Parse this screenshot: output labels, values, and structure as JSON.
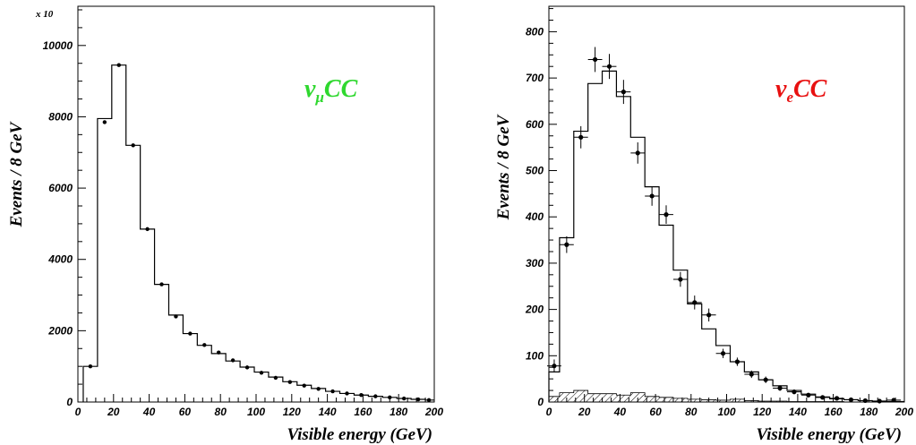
{
  "colors": {
    "left_annotation": "#2fd82f",
    "right_annotation": "#e81010",
    "ink": "#000000"
  },
  "chart_data": [
    {
      "type": "histogram",
      "xlabel": "Visible energy (GeV)",
      "ylabel": "Events / 8 GeV",
      "multiplier_label": "x 10",
      "annotation": {
        "base": "ν",
        "sub": "μ",
        "main": "CC"
      },
      "xlim": [
        0,
        200
      ],
      "ylim": [
        0,
        11100
      ],
      "xticks": [
        0,
        20,
        40,
        60,
        80,
        100,
        120,
        140,
        160,
        180,
        200
      ],
      "yticks": [
        0,
        2000,
        4000,
        6000,
        8000,
        10000
      ],
      "bin_edges": [
        3,
        11,
        19,
        27,
        35,
        43,
        51,
        59,
        67,
        75,
        83,
        91,
        99,
        107,
        115,
        123,
        131,
        139,
        147,
        155,
        163,
        171,
        179,
        187,
        195,
        200
      ],
      "simulation": [
        1000,
        7950,
        9450,
        7200,
        4850,
        3300,
        2440,
        1920,
        1590,
        1360,
        1150,
        980,
        840,
        700,
        570,
        470,
        380,
        300,
        240,
        195,
        160,
        130,
        100,
        75,
        55
      ],
      "data_points": [
        {
          "x": 7,
          "y": 1000
        },
        {
          "x": 15,
          "y": 7850
        },
        {
          "x": 23,
          "y": 9450
        },
        {
          "x": 31,
          "y": 7200
        },
        {
          "x": 39,
          "y": 4850
        },
        {
          "x": 47,
          "y": 3300
        },
        {
          "x": 55,
          "y": 2400
        },
        {
          "x": 63,
          "y": 1920
        },
        {
          "x": 71,
          "y": 1600
        },
        {
          "x": 79,
          "y": 1390
        },
        {
          "x": 87,
          "y": 1170
        },
        {
          "x": 95,
          "y": 970
        },
        {
          "x": 103,
          "y": 820
        },
        {
          "x": 111,
          "y": 680
        },
        {
          "x": 119,
          "y": 560
        },
        {
          "x": 127,
          "y": 460
        },
        {
          "x": 135,
          "y": 370
        },
        {
          "x": 143,
          "y": 300
        },
        {
          "x": 151,
          "y": 240
        },
        {
          "x": 159,
          "y": 195
        },
        {
          "x": 167,
          "y": 160
        },
        {
          "x": 175,
          "y": 130
        },
        {
          "x": 183,
          "y": 100
        },
        {
          "x": 191,
          "y": 75
        },
        {
          "x": 197,
          "y": 55
        }
      ]
    },
    {
      "type": "histogram",
      "xlabel": "Visible energy (GeV)",
      "ylabel": "Events / 8 GeV",
      "annotation": {
        "base": "ν",
        "sub": "e",
        "main": "CC"
      },
      "xlim": [
        0,
        200
      ],
      "ylim": [
        0,
        855
      ],
      "xticks": [
        0,
        20,
        40,
        60,
        80,
        100,
        120,
        140,
        160,
        180,
        200
      ],
      "yticks": [
        0,
        100,
        200,
        300,
        400,
        500,
        600,
        700,
        800
      ],
      "bin_edges": [
        0,
        6,
        14,
        22,
        30,
        38,
        46,
        54,
        62,
        70,
        78,
        86,
        94,
        102,
        110,
        118,
        126,
        134,
        142,
        150,
        158,
        166,
        174,
        182,
        190,
        200
      ],
      "simulation": [
        65,
        355,
        585,
        688,
        715,
        660,
        572,
        465,
        382,
        285,
        212,
        158,
        122,
        87,
        65,
        48,
        35,
        25,
        17,
        11,
        7,
        5,
        3,
        2,
        1
      ],
      "background": [
        12,
        20,
        25,
        18,
        18,
        15,
        20,
        12,
        10,
        8,
        6,
        5,
        4,
        6,
        3,
        2,
        2,
        1,
        1,
        1,
        1,
        0,
        0,
        0,
        0
      ],
      "data_points": [
        {
          "x": 3,
          "y": 78,
          "yerr": 14
        },
        {
          "x": 10,
          "y": 340,
          "yerr": 18
        },
        {
          "x": 18,
          "y": 572,
          "yerr": 24
        },
        {
          "x": 26,
          "y": 740,
          "yerr": 27
        },
        {
          "x": 34,
          "y": 725,
          "yerr": 27
        },
        {
          "x": 42,
          "y": 670,
          "yerr": 26
        },
        {
          "x": 50,
          "y": 538,
          "yerr": 23
        },
        {
          "x": 58,
          "y": 445,
          "yerr": 21
        },
        {
          "x": 66,
          "y": 405,
          "yerr": 20
        },
        {
          "x": 74,
          "y": 265,
          "yerr": 16
        },
        {
          "x": 82,
          "y": 215,
          "yerr": 15
        },
        {
          "x": 90,
          "y": 188,
          "yerr": 14
        },
        {
          "x": 98,
          "y": 105,
          "yerr": 10
        },
        {
          "x": 106,
          "y": 87,
          "yerr": 9
        },
        {
          "x": 114,
          "y": 60,
          "yerr": 8
        },
        {
          "x": 122,
          "y": 48,
          "yerr": 7
        },
        {
          "x": 130,
          "y": 30,
          "yerr": 6
        },
        {
          "x": 138,
          "y": 22,
          "yerr": 5
        },
        {
          "x": 146,
          "y": 15,
          "yerr": 4
        },
        {
          "x": 154,
          "y": 10,
          "yerr": 3
        },
        {
          "x": 162,
          "y": 8,
          "yerr": 3
        },
        {
          "x": 170,
          "y": 5,
          "yerr": 2
        },
        {
          "x": 178,
          "y": 3,
          "yerr": 2
        },
        {
          "x": 186,
          "y": 2,
          "yerr": 1
        },
        {
          "x": 194,
          "y": 4,
          "yerr": 2
        }
      ]
    }
  ]
}
